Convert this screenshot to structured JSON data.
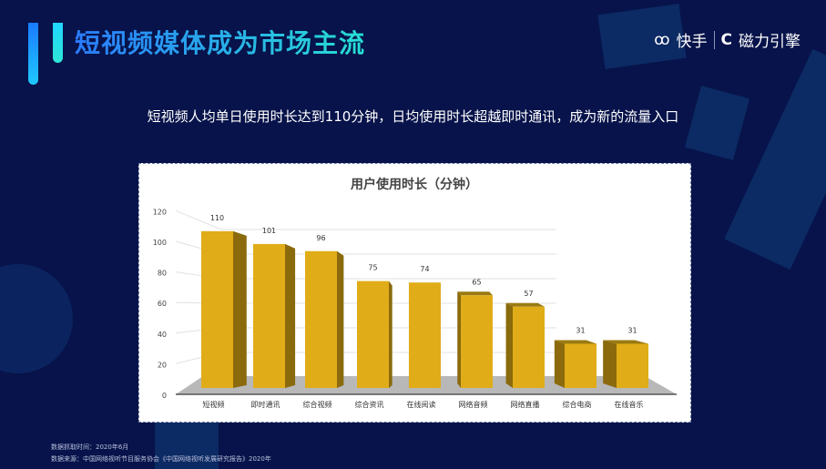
{
  "header": {
    "title": "短视频媒体成为市场主流",
    "logo_kuaishou": "快手",
    "logo_cili": "磁力引擎"
  },
  "subtitle": "短视频人均单日使用时长达到110分钟，日均使用时长超越即时通讯，成为新的流量入口",
  "chart_data": {
    "type": "bar",
    "title": "用户使用时长（分钟）",
    "categories": [
      "短视频",
      "即时通讯",
      "综合视频",
      "综合资讯",
      "在线阅读",
      "网络音频",
      "网络直播",
      "综合电商",
      "在线音乐"
    ],
    "values": [
      110,
      101,
      96,
      75,
      74,
      65,
      57,
      31,
      31
    ],
    "ylim": [
      0,
      120
    ],
    "yticks": [
      "0",
      "20",
      "40",
      "60",
      "80",
      "100",
      "120"
    ],
    "grid": true,
    "style": "3d",
    "colors": {
      "bar": "#e0ac18",
      "side": "#8a6a0c",
      "floor": "#b8b8b8"
    }
  },
  "footer": {
    "capture_time": "数据抓取时间：2020年6月",
    "source": "数据来源：中国网络视听节目服务协会《中国网络视听发展研究报告》2020年"
  }
}
